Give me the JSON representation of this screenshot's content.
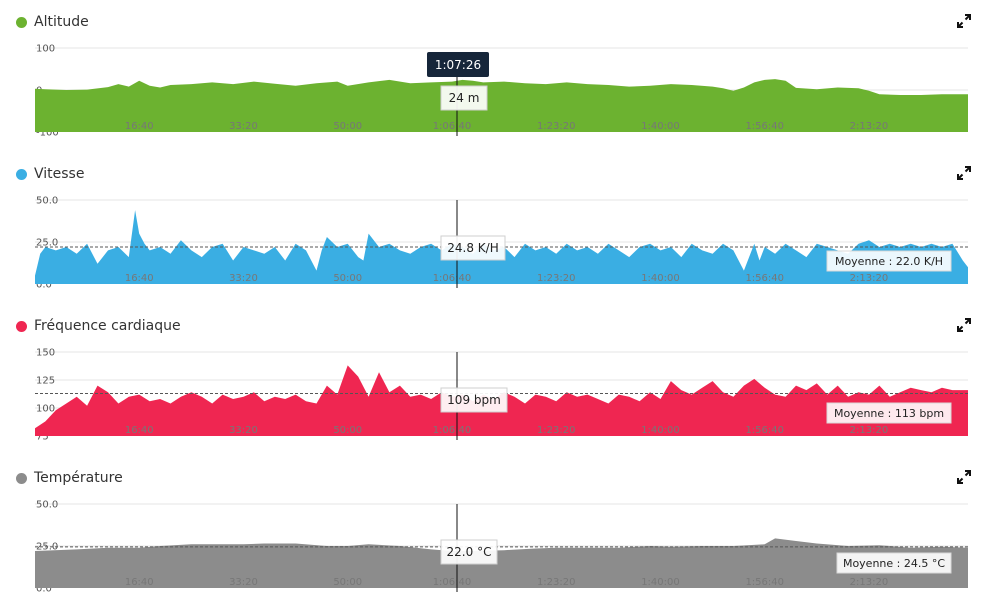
{
  "chart_data": [
    {
      "type": "area",
      "title": "Altitude",
      "color": "#6cb230",
      "ylim": [
        -100,
        100
      ],
      "yticks": [
        "100",
        "0",
        "-100"
      ],
      "ytick_values": [
        100,
        0,
        -100
      ],
      "x_tick_labels": [
        "16:40",
        "33:20",
        "50:00",
        "1:06:40",
        "1:23:20",
        "1:40:00",
        "1:56:40",
        "2:13:20"
      ],
      "x_tick_seconds": [
        1000,
        2000,
        3000,
        4000,
        5000,
        6000,
        7000,
        8000
      ],
      "x_range_seconds": [
        0,
        8950
      ],
      "cursor_time": "1:07:26",
      "cursor_seconds": 4046,
      "tooltip_value": "24 m",
      "series": [
        {
          "x": [
            0,
            100,
            300,
            500,
            700,
            800,
            900,
            1000,
            1100,
            1200,
            1300,
            1500,
            1700,
            1900,
            2100,
            2300,
            2500,
            2700,
            2900,
            3000,
            3200,
            3400,
            3600,
            3800,
            4000,
            4100,
            4200,
            4300,
            4500,
            4700,
            4900,
            5100,
            5300,
            5500,
            5700,
            5900,
            6100,
            6300,
            6500,
            6600,
            6700,
            6800,
            6900,
            7000,
            7100,
            7200,
            7300,
            7500,
            7700,
            7900,
            8000,
            8100,
            8300,
            8500,
            8700,
            8950
          ],
          "y": [
            3,
            2,
            0,
            1,
            7,
            14,
            8,
            22,
            10,
            6,
            12,
            14,
            18,
            14,
            20,
            15,
            10,
            16,
            20,
            10,
            18,
            24,
            16,
            18,
            20,
            24,
            22,
            18,
            20,
            16,
            14,
            18,
            14,
            12,
            8,
            10,
            14,
            12,
            8,
            4,
            -2,
            6,
            18,
            24,
            26,
            22,
            5,
            2,
            6,
            4,
            -2,
            -10,
            -12,
            -12,
            -10,
            -10
          ]
        }
      ]
    },
    {
      "type": "area",
      "title": "Vitesse",
      "color": "#3aaee3",
      "ylim": [
        0,
        50
      ],
      "yticks": [
        "50.0",
        "25.0",
        "0.0"
      ],
      "ytick_values": [
        50,
        25,
        0
      ],
      "x_tick_labels": [
        "16:40",
        "33:20",
        "50:00",
        "1:06:40",
        "1:23:20",
        "1:40:00",
        "1:56:40",
        "2:13:20"
      ],
      "x_tick_seconds": [
        1000,
        2000,
        3000,
        4000,
        5000,
        6000,
        7000,
        8000
      ],
      "x_range_seconds": [
        0,
        8950
      ],
      "mean_value": 22.0,
      "mean_label": "Moyenne : 22.0 K/H",
      "tooltip_value": "24.8 K/H",
      "series": [
        {
          "x": [
            0,
            50,
            100,
            200,
            300,
            400,
            500,
            600,
            700,
            800,
            900,
            960,
            1000,
            1050,
            1100,
            1200,
            1300,
            1400,
            1500,
            1600,
            1700,
            1800,
            1900,
            2000,
            2100,
            2200,
            2300,
            2400,
            2500,
            2600,
            2700,
            2750,
            2800,
            2900,
            3000,
            3100,
            3150,
            3200,
            3300,
            3400,
            3500,
            3600,
            3700,
            3800,
            3900,
            4000,
            4100,
            4200,
            4300,
            4400,
            4500,
            4600,
            4700,
            4800,
            4900,
            5000,
            5100,
            5200,
            5300,
            5400,
            5500,
            5600,
            5700,
            5800,
            5900,
            6000,
            6100,
            6200,
            6300,
            6400,
            6500,
            6600,
            6700,
            6800,
            6900,
            6950,
            7000,
            7100,
            7200,
            7300,
            7400,
            7500,
            7600,
            7700,
            7800,
            7900,
            8000,
            8100,
            8200,
            8300,
            8400,
            8500,
            8600,
            8700,
            8800,
            8900,
            8950
          ],
          "y": [
            5,
            18,
            22,
            20,
            22,
            18,
            24,
            12,
            20,
            22,
            16,
            44,
            30,
            24,
            20,
            22,
            18,
            26,
            20,
            16,
            22,
            24,
            14,
            22,
            20,
            18,
            22,
            14,
            24,
            20,
            8,
            20,
            28,
            22,
            24,
            16,
            14,
            30,
            22,
            24,
            20,
            18,
            22,
            24,
            20,
            24,
            22,
            18,
            24,
            20,
            22,
            16,
            24,
            20,
            22,
            18,
            24,
            20,
            22,
            18,
            24,
            20,
            16,
            22,
            24,
            20,
            22,
            16,
            24,
            20,
            18,
            24,
            20,
            8,
            24,
            14,
            22,
            18,
            24,
            20,
            16,
            24,
            22,
            20,
            18,
            24,
            26,
            22,
            24,
            22,
            24,
            22,
            24,
            22,
            24,
            14,
            10
          ]
        }
      ]
    },
    {
      "type": "area",
      "title": "Fréquence cardiaque",
      "color": "#ef2651",
      "ylim": [
        75,
        150
      ],
      "yticks": [
        "150",
        "125",
        "100",
        "75"
      ],
      "ytick_values": [
        150,
        125,
        100,
        75
      ],
      "x_tick_labels": [
        "16:40",
        "33:20",
        "50:00",
        "1:06:40",
        "1:23:20",
        "1:40:00",
        "1:56:40",
        "2:13:20"
      ],
      "x_tick_seconds": [
        1000,
        2000,
        3000,
        4000,
        5000,
        6000,
        7000,
        8000
      ],
      "x_range_seconds": [
        0,
        8950
      ],
      "mean_value": 113,
      "mean_label": "Moyenne : 113 bpm",
      "tooltip_value": "109 bpm",
      "series": [
        {
          "x": [
            0,
            100,
            200,
            300,
            400,
            500,
            600,
            700,
            800,
            900,
            1000,
            1100,
            1200,
            1300,
            1400,
            1500,
            1600,
            1700,
            1800,
            1900,
            2000,
            2100,
            2200,
            2300,
            2400,
            2500,
            2600,
            2700,
            2800,
            2900,
            3000,
            3100,
            3200,
            3300,
            3400,
            3500,
            3600,
            3700,
            3800,
            3900,
            4000,
            4100,
            4200,
            4300,
            4400,
            4500,
            4600,
            4700,
            4800,
            4900,
            5000,
            5100,
            5200,
            5300,
            5400,
            5500,
            5600,
            5700,
            5800,
            5900,
            6000,
            6100,
            6200,
            6300,
            6400,
            6500,
            6600,
            6700,
            6800,
            6900,
            7000,
            7100,
            7200,
            7300,
            7400,
            7500,
            7600,
            7700,
            7800,
            7900,
            8000,
            8100,
            8200,
            8300,
            8400,
            8500,
            8600,
            8700,
            8800,
            8950
          ],
          "y": [
            82,
            88,
            98,
            104,
            110,
            102,
            120,
            114,
            104,
            110,
            112,
            106,
            108,
            104,
            110,
            114,
            110,
            104,
            112,
            108,
            110,
            114,
            106,
            110,
            108,
            112,
            106,
            104,
            120,
            112,
            138,
            128,
            110,
            132,
            114,
            120,
            110,
            112,
            108,
            114,
            110,
            112,
            106,
            112,
            108,
            114,
            110,
            104,
            112,
            110,
            106,
            114,
            110,
            112,
            108,
            104,
            112,
            110,
            106,
            114,
            108,
            124,
            116,
            112,
            118,
            124,
            114,
            110,
            120,
            126,
            118,
            112,
            110,
            120,
            116,
            122,
            112,
            120,
            110,
            114,
            112,
            120,
            110,
            114,
            118,
            116,
            114,
            118,
            116,
            116
          ]
        }
      ]
    },
    {
      "type": "area",
      "title": "Température",
      "color": "#8c8c8c",
      "ylim": [
        0,
        50
      ],
      "yticks": [
        "50.0",
        "25.0",
        "0.0"
      ],
      "ytick_values": [
        50,
        25,
        0
      ],
      "x_tick_labels": [
        "16:40",
        "33:20",
        "50:00",
        "1:06:40",
        "1:23:20",
        "1:40:00",
        "1:56:40",
        "2:13:20"
      ],
      "x_tick_seconds": [
        1000,
        2000,
        3000,
        4000,
        5000,
        6000,
        7000,
        8000
      ],
      "x_range_seconds": [
        0,
        8950
      ],
      "mean_value": 24.5,
      "mean_label": "Moyenne : 24.5 °C",
      "tooltip_value": "22.0 °C",
      "series": [
        {
          "x": [
            0,
            400,
            700,
            1000,
            1200,
            1500,
            1800,
            2000,
            2200,
            2500,
            2800,
            3000,
            3200,
            3500,
            3800,
            4000,
            4200,
            4500,
            4800,
            5000,
            5300,
            5600,
            5900,
            6100,
            6400,
            6700,
            7000,
            7100,
            7300,
            7500,
            7800,
            8100,
            8400,
            8700,
            8950
          ],
          "y": [
            22,
            23,
            24,
            24,
            25,
            26,
            26,
            26,
            26.5,
            26.5,
            25,
            25,
            26,
            25,
            23,
            22,
            22,
            22.5,
            23.5,
            24,
            24,
            24,
            25,
            24.5,
            25,
            25,
            26,
            29.5,
            28,
            26.5,
            25,
            25.5,
            24,
            24.5,
            24
          ]
        }
      ]
    }
  ]
}
